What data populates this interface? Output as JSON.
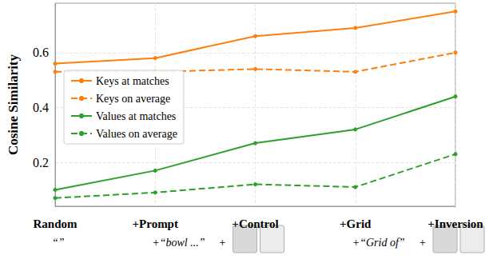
{
  "chart_data": {
    "type": "line",
    "y_label": "Cosine Similarity",
    "categories": [
      "Random",
      "+Prompt",
      "+Control",
      "+Grid",
      "+Inversion"
    ],
    "annotations": [
      "“”",
      "+“bowl ...”",
      "+",
      "+“Grid of”",
      "+"
    ],
    "series": [
      {
        "name": "Keys at matches",
        "color": "#ff7f0e",
        "line_style": "solid",
        "marker": "circle",
        "values": [
          0.56,
          0.58,
          0.66,
          0.69,
          0.75
        ]
      },
      {
        "name": "Keys on average",
        "color": "#ff7f0e",
        "line_style": "dashed",
        "marker": "circle",
        "values": [
          0.53,
          0.53,
          0.54,
          0.53,
          0.6
        ]
      },
      {
        "name": "Values at matches",
        "color": "#2ca02c",
        "line_style": "solid",
        "marker": "circle",
        "values": [
          0.1,
          0.17,
          0.27,
          0.32,
          0.44
        ]
      },
      {
        "name": "Values on average",
        "color": "#2ca02c",
        "line_style": "dashed",
        "marker": "circle",
        "values": [
          0.07,
          0.09,
          0.12,
          0.11,
          0.23
        ]
      }
    ],
    "ylim": [
      0.04,
      0.78
    ],
    "yticks": [
      0.2,
      0.4,
      0.6
    ],
    "grid": true,
    "legend": "left"
  }
}
